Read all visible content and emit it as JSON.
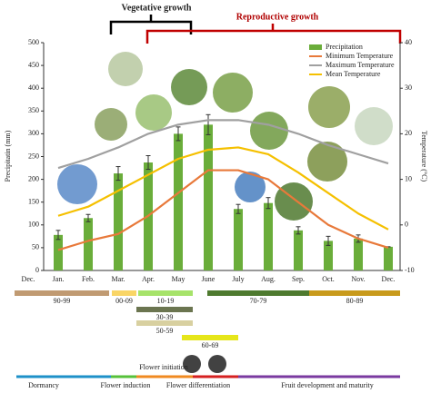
{
  "chart_data": {
    "type": "bar",
    "annotations": [
      "Vegetative growth",
      "Reproductive growth"
    ],
    "ylabel": "Precipitatin (mm)",
    "y2label": "Temperature (°C)",
    "categories": [
      "Dec.",
      "Jan.",
      "Feb.",
      "Mar.",
      "Apr.",
      "May",
      "June",
      "July",
      "Aug.",
      "Sep.",
      "Oct.",
      "Nov.",
      "Dec."
    ],
    "series": [
      {
        "name": "Precipitation",
        "type": "bar",
        "color": "#6aad3a",
        "values": [
          null,
          78,
          115,
          213,
          237,
          300,
          320,
          135,
          148,
          88,
          65,
          70,
          52
        ],
        "errors": [
          null,
          10,
          8,
          15,
          15,
          15,
          22,
          10,
          12,
          8,
          10,
          8,
          0
        ]
      },
      {
        "name": "Minimum Temperature",
        "type": "line",
        "axis": "y2",
        "color": "#e8793a",
        "values": [
          null,
          -5.5,
          -3.5,
          -2,
          2,
          7,
          12,
          12,
          10,
          5,
          0,
          -3,
          -5
        ]
      },
      {
        "name": "Maximum Temperature",
        "type": "line",
        "axis": "y2",
        "color": "#a0a0a0",
        "values": [
          null,
          12.5,
          14.5,
          17,
          20,
          22,
          23,
          23,
          22,
          20,
          17.5,
          15.5,
          13.5
        ]
      },
      {
        "name": "Mean Temperature",
        "type": "line",
        "axis": "y2",
        "color": "#f5c000",
        "values": [
          null,
          2,
          4,
          7.5,
          11,
          14.5,
          16.5,
          17,
          15.5,
          11.5,
          7,
          2.5,
          -1
        ]
      }
    ],
    "ylim": [
      0,
      500
    ],
    "yticks": [
      0,
      50,
      100,
      150,
      200,
      250,
      300,
      350,
      400,
      450,
      500
    ],
    "y2lim": [
      -10,
      40
    ],
    "y2ticks": [
      -10,
      0,
      10,
      20,
      30,
      40
    ],
    "legend": "top-right"
  },
  "phases": [
    {
      "label": "90-99",
      "color": "#c09a72"
    },
    {
      "label": "00-09",
      "color": "#f9d566"
    },
    {
      "label": "10-19",
      "color": "#a6e36a"
    },
    {
      "label": "30-39",
      "color": "#6b7550"
    },
    {
      "label": "50-59",
      "color": "#d8d0a0"
    },
    {
      "label": "60-69",
      "color": "#e6e61a"
    },
    {
      "label": "70-79",
      "color": "#4e7a2f"
    },
    {
      "label": "80-89",
      "color": "#c89a1c"
    }
  ],
  "stages": [
    {
      "label": "Dormancy",
      "color": "#1e90c8"
    },
    {
      "label": "Flower induction",
      "color": "#56c13a"
    },
    {
      "label": "Flower initiation",
      "color": "#f08a20"
    },
    {
      "label": "Flower differentiation",
      "color": "#d62020"
    },
    {
      "label": "Fruit development and maturity",
      "color": "#7a3aa0"
    }
  ]
}
